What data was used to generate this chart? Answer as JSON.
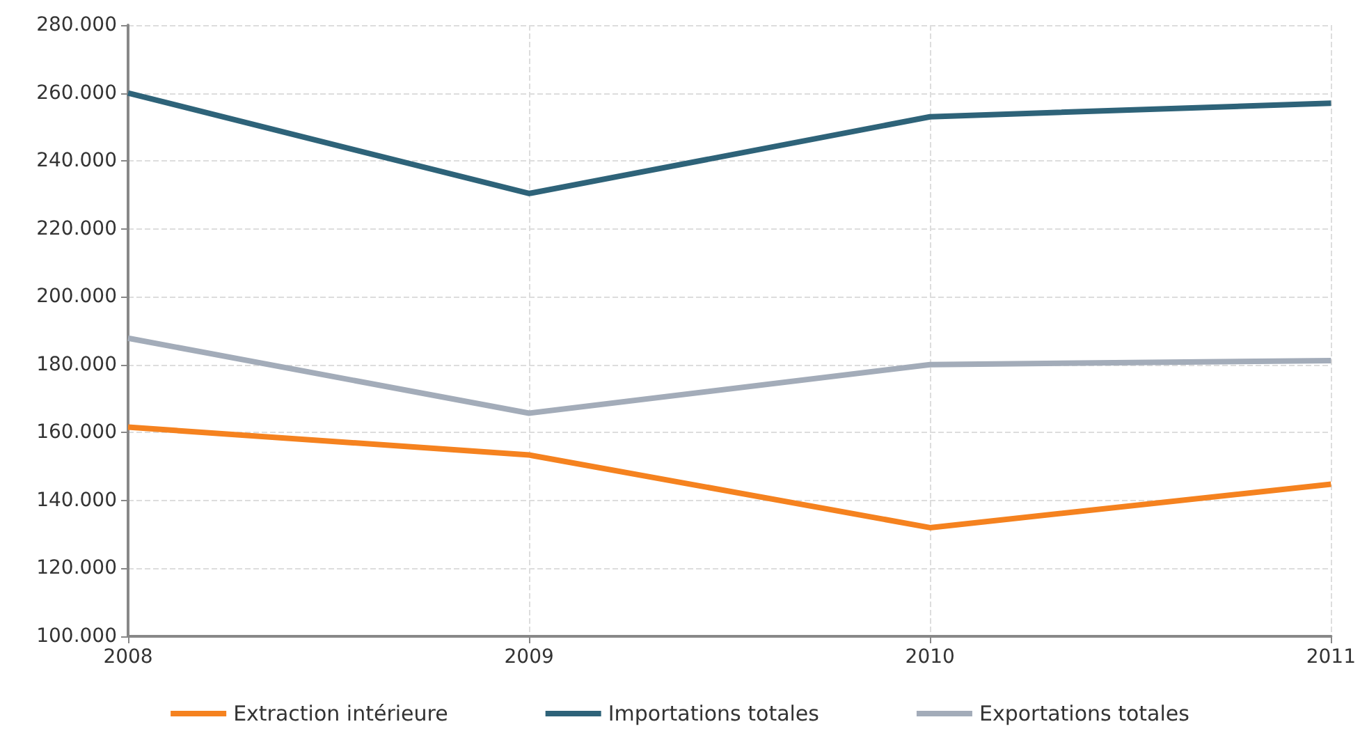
{
  "chart_data": {
    "type": "line",
    "x": [
      2008,
      2009,
      2010,
      2011
    ],
    "series": [
      {
        "name": "Extraction intérieure",
        "color": "#f5821f",
        "values": [
          161600,
          153400,
          132000,
          144800
        ]
      },
      {
        "name": "Importations totales",
        "color": "#2e6379",
        "values": [
          260000,
          230400,
          253000,
          257000
        ]
      },
      {
        "name": "Exportations totales",
        "color": "#a3acb9",
        "values": [
          187800,
          165700,
          180000,
          181200
        ]
      }
    ],
    "xlim": [
      2008,
      2011
    ],
    "xticks": [
      2008,
      2009,
      2010,
      2011
    ],
    "ylim": [
      100000,
      280000
    ],
    "yticks": [
      {
        "value": 100000,
        "label": "100.000"
      },
      {
        "value": 120000,
        "label": "120.000"
      },
      {
        "value": 140000,
        "label": "140.000"
      },
      {
        "value": 160000,
        "label": "160.000"
      },
      {
        "value": 180000,
        "label": "180.000"
      },
      {
        "value": 200000,
        "label": "200.000"
      },
      {
        "value": 220000,
        "label": "220.000"
      },
      {
        "value": 240000,
        "label": "240.000"
      },
      {
        "value": 260000,
        "label": "260.000"
      },
      {
        "value": 280000,
        "label": "280.000"
      }
    ],
    "grid": true,
    "legend": "bottom",
    "marker": "none",
    "line_style": "solid"
  }
}
